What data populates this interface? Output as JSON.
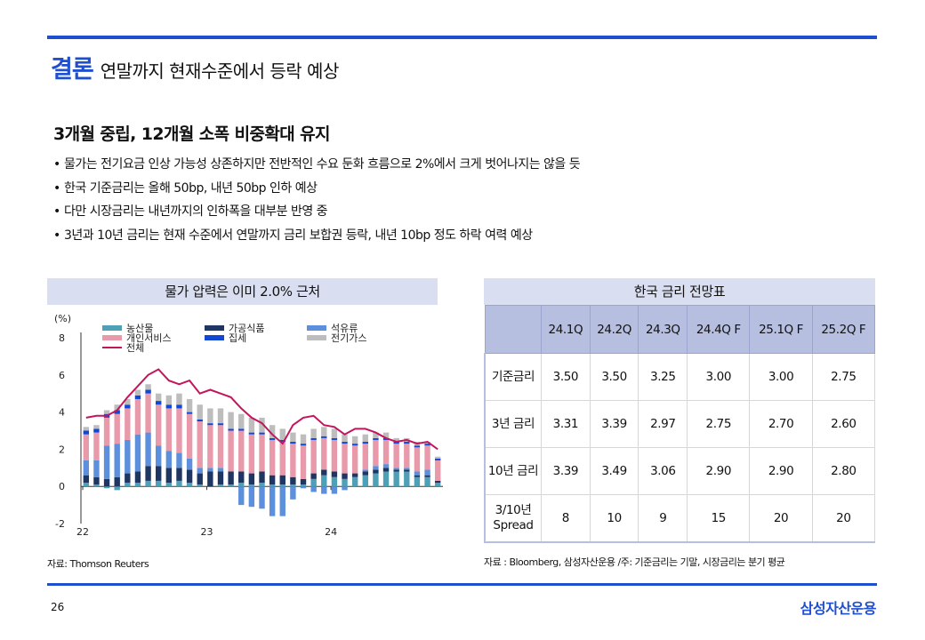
{
  "header": {
    "accent": "결론",
    "title": "연말까지 현재수준에서 등락 예상"
  },
  "subtitle": "3개월 중립, 12개월 소폭 비중확대 유지",
  "bullets": [
    "물가는 전기요금 인상 가능성 상존하지만 전반적인 수요 둔화 흐름으로 2%에서 크게 벗어나지는 않을 듯",
    "한국 기준금리는 올해 50bp, 내년 50bp 인하 예상",
    "다만 시장금리는 내년까지의 인하폭을 대부분 반영 중",
    "3년과 10년 금리는 현재 수준에서 연말까지 금리 보합권 등락, 내년 10bp 정도 하락 여력 예상"
  ],
  "chart_panel": {
    "title": "물가 압력은 이미 2.0% 근처",
    "source": "자료: Thomson Reuters"
  },
  "chart_data": {
    "type": "bar",
    "title": "물가 압력은 이미 2.0% 근처",
    "ylabel": "(%)",
    "ylim": [
      -2,
      8
    ],
    "yticks": [
      -2,
      0,
      2,
      4,
      6,
      8
    ],
    "xticks": [
      {
        "index": 0,
        "label": "22"
      },
      {
        "index": 12,
        "label": "23"
      },
      {
        "index": 24,
        "label": "24"
      }
    ],
    "legend": [
      {
        "key": "agri",
        "name": "농산물",
        "color": "#4ea0b6",
        "kind": "bar"
      },
      {
        "key": "processed",
        "name": "가공식품",
        "color": "#1f3663",
        "kind": "bar"
      },
      {
        "key": "oil",
        "name": "석유류",
        "color": "#5c8fdc",
        "kind": "bar"
      },
      {
        "key": "services",
        "name": "개인서비스",
        "color": "#e89aab",
        "kind": "bar"
      },
      {
        "key": "rent",
        "name": "집세",
        "color": "#1247d6",
        "kind": "bar"
      },
      {
        "key": "utility",
        "name": "전기가스",
        "color": "#bdbdbd",
        "kind": "bar"
      },
      {
        "key": "total",
        "name": "전체",
        "color": "#c4155c",
        "kind": "line"
      }
    ],
    "series": {
      "agri": [
        0.2,
        0.1,
        -0.1,
        -0.2,
        0.2,
        0.2,
        0.3,
        0.3,
        0.2,
        0.3,
        0.2,
        0.1,
        0,
        0.1,
        0.1,
        0.2,
        0.1,
        0.2,
        0.1,
        0.1,
        0.1,
        0.1,
        0.4,
        0.6,
        0.5,
        0.4,
        0.5,
        0.6,
        0.7,
        0.8,
        0.8,
        0.8,
        0.5,
        0.5,
        0.2
      ],
      "processed": [
        0.4,
        0.4,
        0.4,
        0.5,
        0.5,
        0.6,
        0.8,
        0.8,
        0.8,
        0.7,
        0.7,
        0.6,
        0.8,
        0.7,
        0.7,
        0.6,
        0.6,
        0.6,
        0.5,
        0.5,
        0.4,
        0.3,
        0.3,
        0.3,
        0.3,
        0.3,
        0.2,
        0.2,
        0.2,
        0.2,
        0.1,
        0.1,
        0.1,
        0.1,
        0.1
      ],
      "oil": [
        0.8,
        0.9,
        1.8,
        1.8,
        1.8,
        2.0,
        1.8,
        1.1,
        0.9,
        0.8,
        0.6,
        0.3,
        0.2,
        0.2,
        0,
        -1.0,
        -1.1,
        -1.2,
        -1.6,
        -1.6,
        -0.7,
        -0.1,
        -0.3,
        -0.4,
        -0.4,
        -0.2,
        0,
        0.1,
        0.2,
        0.2,
        0.1,
        0.1,
        0.2,
        0.3,
        0
      ],
      "services": [
        1.4,
        1.5,
        1.5,
        1.6,
        1.7,
        1.9,
        2.1,
        2.2,
        2.3,
        2.4,
        2.4,
        2.5,
        2.3,
        2.3,
        2.2,
        2.2,
        2.1,
        2.0,
        1.9,
        1.8,
        1.8,
        1.8,
        1.8,
        1.7,
        1.7,
        1.6,
        1.5,
        1.4,
        1.4,
        1.3,
        1.3,
        1.3,
        1.3,
        1.3,
        1.1
      ],
      "rent": [
        0.2,
        0.2,
        0.2,
        0.2,
        0.2,
        0.2,
        0.2,
        0.2,
        0.2,
        0.2,
        0.1,
        0.1,
        0.1,
        0.1,
        0.1,
        0.1,
        0.1,
        0.1,
        0.1,
        0.1,
        0.1,
        0.1,
        0.1,
        0.1,
        0.1,
        0.1,
        0.1,
        0.1,
        0.1,
        0.1,
        0.1,
        0.1,
        0.1,
        0.1,
        0.1
      ],
      "utility": [
        0.2,
        0.2,
        0.2,
        0.3,
        0.3,
        0.3,
        0.3,
        0.4,
        0.5,
        0.6,
        0.7,
        0.8,
        0.8,
        0.8,
        0.9,
        0.8,
        0.8,
        0.8,
        0.7,
        0.6,
        0.5,
        0.5,
        0.5,
        0.5,
        0.5,
        0.4,
        0.4,
        0.4,
        0.3,
        0.3,
        0.2,
        0.2,
        0.2,
        0.1,
        0.1
      ],
      "total": [
        3.7,
        3.8,
        3.8,
        4.1,
        4.8,
        5.4,
        6.0,
        6.3,
        5.7,
        5.5,
        5.7,
        5.0,
        5.2,
        5.0,
        4.8,
        4.2,
        3.7,
        3.4,
        2.8,
        2.3,
        3.3,
        3.7,
        3.8,
        3.3,
        3.2,
        2.8,
        3.1,
        3.1,
        2.9,
        2.6,
        2.4,
        2.5,
        2.3,
        2.4,
        2.0
      ]
    }
  },
  "table_panel": {
    "title": "한국 금리 전망표",
    "source": "자료 : Bloomberg, 삼성자산운용 /주: 기준금리는 기말, 시장금리는 분기 평균"
  },
  "rates_table": {
    "columns": [
      "24.1Q",
      "24.2Q",
      "24.3Q",
      "24.4Q F",
      "25.1Q F",
      "25.2Q F"
    ],
    "rows": [
      {
        "label": "기준금리",
        "values": [
          "3.50",
          "3.50",
          "3.25",
          "3.00",
          "3.00",
          "2.75"
        ]
      },
      {
        "label": "3년 금리",
        "values": [
          "3.31",
          "3.39",
          "2.97",
          "2.75",
          "2.70",
          "2.60"
        ]
      },
      {
        "label": "10년 금리",
        "values": [
          "3.39",
          "3.49",
          "3.06",
          "2.90",
          "2.90",
          "2.80"
        ]
      },
      {
        "label": "3/10년 Spread",
        "values": [
          "8",
          "10",
          "9",
          "15",
          "20",
          "20"
        ]
      }
    ]
  },
  "footer": {
    "page_number": "26",
    "brand": "삼성자산운용"
  }
}
